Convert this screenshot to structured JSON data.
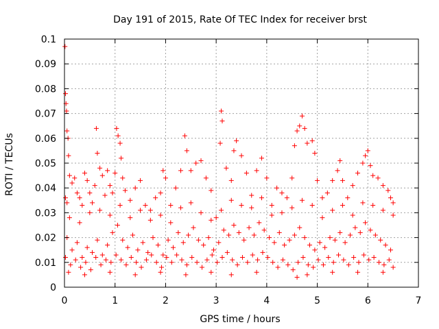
{
  "chart_data": {
    "type": "scatter",
    "title": "Day 191 of 2015, Rate Of TEC Index for receiver brst",
    "xlabel": "GPS time / hours",
    "ylabel": "ROTI / TECUs",
    "xlim": [
      0,
      7
    ],
    "ylim": [
      0,
      0.1
    ],
    "x_ticks": [
      "0",
      "1",
      "2",
      "3",
      "4",
      "5",
      "6",
      "7"
    ],
    "y_ticks": [
      "0",
      "0.01",
      "0.02",
      "0.03",
      "0.04",
      "0.05",
      "0.06",
      "0.07",
      "0.08",
      "0.09",
      "0.1"
    ],
    "grid": true,
    "marker": "+",
    "color": "#ff0000",
    "series": [
      {
        "points": [
          [
            0.01,
            0.097
          ],
          [
            0.02,
            0.078
          ],
          [
            0.03,
            0.074
          ],
          [
            0.04,
            0.071
          ],
          [
            0.05,
            0.063
          ],
          [
            0.07,
            0.06
          ],
          [
            0.02,
            0.036
          ],
          [
            0.05,
            0.034
          ],
          [
            0.08,
            0.053
          ],
          [
            0.1,
            0.045
          ],
          [
            0.15,
            0.042
          ],
          [
            0.2,
            0.044
          ],
          [
            0.25,
            0.038
          ],
          [
            0.3,
            0.036
          ],
          [
            0.35,
            0.033
          ],
          [
            0.4,
            0.046
          ],
          [
            0.45,
            0.043
          ],
          [
            0.5,
            0.038
          ],
          [
            0.55,
            0.034
          ],
          [
            0.6,
            0.041
          ],
          [
            0.63,
            0.064
          ],
          [
            0.65,
            0.054
          ],
          [
            0.7,
            0.048
          ],
          [
            0.75,
            0.045
          ],
          [
            0.8,
            0.037
          ],
          [
            0.85,
            0.047
          ],
          [
            0.9,
            0.041
          ],
          [
            0.95,
            0.038
          ],
          [
            1.0,
            0.046
          ],
          [
            1.03,
            0.064
          ],
          [
            1.06,
            0.061
          ],
          [
            1.1,
            0.058
          ],
          [
            1.12,
            0.052
          ],
          [
            1.15,
            0.044
          ],
          [
            1.2,
            0.039
          ],
          [
            1.3,
            0.035
          ],
          [
            1.4,
            0.04
          ],
          [
            1.5,
            0.043
          ],
          [
            1.6,
            0.033
          ],
          [
            1.7,
            0.031
          ],
          [
            1.8,
            0.036
          ],
          [
            1.9,
            0.038
          ],
          [
            1.95,
            0.047
          ],
          [
            2.0,
            0.044
          ],
          [
            2.1,
            0.033
          ],
          [
            2.2,
            0.04
          ],
          [
            2.3,
            0.047
          ],
          [
            2.38,
            0.061
          ],
          [
            2.42,
            0.055
          ],
          [
            2.5,
            0.047
          ],
          [
            2.6,
            0.05
          ],
          [
            2.7,
            0.051
          ],
          [
            2.8,
            0.044
          ],
          [
            2.9,
            0.039
          ],
          [
            3.0,
            0.028
          ],
          [
            3.08,
            0.058
          ],
          [
            3.1,
            0.071
          ],
          [
            3.12,
            0.067
          ],
          [
            3.2,
            0.048
          ],
          [
            3.3,
            0.043
          ],
          [
            3.35,
            0.055
          ],
          [
            3.4,
            0.059
          ],
          [
            3.5,
            0.053
          ],
          [
            3.6,
            0.046
          ],
          [
            3.7,
            0.037
          ],
          [
            3.8,
            0.047
          ],
          [
            3.9,
            0.052
          ],
          [
            4.0,
            0.044
          ],
          [
            4.1,
            0.033
          ],
          [
            4.2,
            0.04
          ],
          [
            4.3,
            0.038
          ],
          [
            4.4,
            0.036
          ],
          [
            4.5,
            0.044
          ],
          [
            4.55,
            0.057
          ],
          [
            4.6,
            0.063
          ],
          [
            4.65,
            0.065
          ],
          [
            4.7,
            0.069
          ],
          [
            4.75,
            0.064
          ],
          [
            4.8,
            0.058
          ],
          [
            4.9,
            0.059
          ],
          [
            4.95,
            0.054
          ],
          [
            5.0,
            0.043
          ],
          [
            5.1,
            0.036
          ],
          [
            5.2,
            0.038
          ],
          [
            5.3,
            0.043
          ],
          [
            5.4,
            0.047
          ],
          [
            5.45,
            0.051
          ],
          [
            5.5,
            0.043
          ],
          [
            5.6,
            0.036
          ],
          [
            5.7,
            0.041
          ],
          [
            5.8,
            0.046
          ],
          [
            5.9,
            0.05
          ],
          [
            5.95,
            0.053
          ],
          [
            6.0,
            0.055
          ],
          [
            6.05,
            0.049
          ],
          [
            6.1,
            0.045
          ],
          [
            6.2,
            0.044
          ],
          [
            6.3,
            0.041
          ],
          [
            6.4,
            0.039
          ],
          [
            6.45,
            0.036
          ],
          [
            6.5,
            0.034
          ],
          [
            0.1,
            0.028
          ],
          [
            0.3,
            0.026
          ],
          [
            0.5,
            0.03
          ],
          [
            0.7,
            0.031
          ],
          [
            0.9,
            0.029
          ],
          [
            1.1,
            0.033
          ],
          [
            1.3,
            0.028
          ],
          [
            1.5,
            0.031
          ],
          [
            1.7,
            0.027
          ],
          [
            1.9,
            0.029
          ],
          [
            2.1,
            0.026
          ],
          [
            2.3,
            0.032
          ],
          [
            2.5,
            0.034
          ],
          [
            2.7,
            0.03
          ],
          [
            2.9,
            0.027
          ],
          [
            3.1,
            0.031
          ],
          [
            3.3,
            0.035
          ],
          [
            3.5,
            0.033
          ],
          [
            3.7,
            0.032
          ],
          [
            3.9,
            0.036
          ],
          [
            4.1,
            0.029
          ],
          [
            4.3,
            0.03
          ],
          [
            4.5,
            0.032
          ],
          [
            4.7,
            0.035
          ],
          [
            4.9,
            0.033
          ],
          [
            5.1,
            0.028
          ],
          [
            5.3,
            0.031
          ],
          [
            5.5,
            0.033
          ],
          [
            5.7,
            0.029
          ],
          [
            5.9,
            0.034
          ],
          [
            6.1,
            0.033
          ],
          [
            6.3,
            0.031
          ],
          [
            6.5,
            0.029
          ],
          [
            0.05,
            0.02
          ],
          [
            0.15,
            0.015
          ],
          [
            0.25,
            0.018
          ],
          [
            0.35,
            0.012
          ],
          [
            0.45,
            0.016
          ],
          [
            0.55,
            0.014
          ],
          [
            0.65,
            0.019
          ],
          [
            0.75,
            0.013
          ],
          [
            0.85,
            0.017
          ],
          [
            0.95,
            0.022
          ],
          [
            1.05,
            0.025
          ],
          [
            1.15,
            0.019
          ],
          [
            1.25,
            0.016
          ],
          [
            1.35,
            0.021
          ],
          [
            1.45,
            0.015
          ],
          [
            1.55,
            0.018
          ],
          [
            1.65,
            0.014
          ],
          [
            1.75,
            0.02
          ],
          [
            1.85,
            0.017
          ],
          [
            1.95,
            0.013
          ],
          [
            2.05,
            0.019
          ],
          [
            2.15,
            0.016
          ],
          [
            2.25,
            0.022
          ],
          [
            2.35,
            0.018
          ],
          [
            2.45,
            0.021
          ],
          [
            2.55,
            0.024
          ],
          [
            2.65,
            0.019
          ],
          [
            2.75,
            0.017
          ],
          [
            2.85,
            0.02
          ],
          [
            2.95,
            0.015
          ],
          [
            3.05,
            0.018
          ],
          [
            3.15,
            0.023
          ],
          [
            3.25,
            0.021
          ],
          [
            3.35,
            0.025
          ],
          [
            3.45,
            0.022
          ],
          [
            3.55,
            0.019
          ],
          [
            3.65,
            0.024
          ],
          [
            3.75,
            0.021
          ],
          [
            3.85,
            0.026
          ],
          [
            3.95,
            0.023
          ],
          [
            4.05,
            0.02
          ],
          [
            4.15,
            0.018
          ],
          [
            4.25,
            0.022
          ],
          [
            4.35,
            0.017
          ],
          [
            4.45,
            0.019
          ],
          [
            4.55,
            0.021
          ],
          [
            4.65,
            0.024
          ],
          [
            4.75,
            0.02
          ],
          [
            4.85,
            0.017
          ],
          [
            4.95,
            0.015
          ],
          [
            5.05,
            0.018
          ],
          [
            5.15,
            0.016
          ],
          [
            5.25,
            0.02
          ],
          [
            5.35,
            0.019
          ],
          [
            5.45,
            0.022
          ],
          [
            5.55,
            0.018
          ],
          [
            5.65,
            0.021
          ],
          [
            5.75,
            0.024
          ],
          [
            5.85,
            0.022
          ],
          [
            5.95,
            0.026
          ],
          [
            6.05,
            0.023
          ],
          [
            6.15,
            0.021
          ],
          [
            6.25,
            0.019
          ],
          [
            6.35,
            0.017
          ],
          [
            6.45,
            0.015
          ],
          [
            0.02,
            0.012
          ],
          [
            0.12,
            0.009
          ],
          [
            0.22,
            0.011
          ],
          [
            0.32,
            0.008
          ],
          [
            0.42,
            0.01
          ],
          [
            0.52,
            0.007
          ],
          [
            0.62,
            0.012
          ],
          [
            0.72,
            0.009
          ],
          [
            0.82,
            0.011
          ],
          [
            0.92,
            0.01
          ],
          [
            1.02,
            0.013
          ],
          [
            1.12,
            0.011
          ],
          [
            1.22,
            0.009
          ],
          [
            1.32,
            0.012
          ],
          [
            1.42,
            0.01
          ],
          [
            1.52,
            0.008
          ],
          [
            1.62,
            0.011
          ],
          [
            1.72,
            0.013
          ],
          [
            1.82,
            0.01
          ],
          [
            1.92,
            0.008
          ],
          [
            2.02,
            0.012
          ],
          [
            2.12,
            0.01
          ],
          [
            2.22,
            0.013
          ],
          [
            2.32,
            0.011
          ],
          [
            2.42,
            0.009
          ],
          [
            2.52,
            0.012
          ],
          [
            2.62,
            0.01
          ],
          [
            2.72,
            0.008
          ],
          [
            2.82,
            0.011
          ],
          [
            2.92,
            0.013
          ],
          [
            3.02,
            0.01
          ],
          [
            3.12,
            0.012
          ],
          [
            3.22,
            0.014
          ],
          [
            3.32,
            0.011
          ],
          [
            3.42,
            0.009
          ],
          [
            3.52,
            0.012
          ],
          [
            3.62,
            0.01
          ],
          [
            3.72,
            0.013
          ],
          [
            3.82,
            0.011
          ],
          [
            3.92,
            0.014
          ],
          [
            4.02,
            0.012
          ],
          [
            4.12,
            0.01
          ],
          [
            4.22,
            0.008
          ],
          [
            4.32,
            0.011
          ],
          [
            4.42,
            0.009
          ],
          [
            4.52,
            0.007
          ],
          [
            4.62,
            0.01
          ],
          [
            4.72,
            0.012
          ],
          [
            4.82,
            0.009
          ],
          [
            4.92,
            0.008
          ],
          [
            5.02,
            0.011
          ],
          [
            5.12,
            0.009
          ],
          [
            5.22,
            0.012
          ],
          [
            5.32,
            0.01
          ],
          [
            5.42,
            0.013
          ],
          [
            5.52,
            0.011
          ],
          [
            5.62,
            0.009
          ],
          [
            5.72,
            0.012
          ],
          [
            5.82,
            0.01
          ],
          [
            5.92,
            0.013
          ],
          [
            6.02,
            0.011
          ],
          [
            6.12,
            0.012
          ],
          [
            6.22,
            0.01
          ],
          [
            6.32,
            0.009
          ],
          [
            6.42,
            0.011
          ],
          [
            6.5,
            0.008
          ],
          [
            0.08,
            0.006
          ],
          [
            0.4,
            0.005
          ],
          [
            0.9,
            0.006
          ],
          [
            1.4,
            0.005
          ],
          [
            1.9,
            0.006
          ],
          [
            2.4,
            0.005
          ],
          [
            2.9,
            0.006
          ],
          [
            3.3,
            0.005
          ],
          [
            3.8,
            0.006
          ],
          [
            4.6,
            0.004
          ],
          [
            4.8,
            0.005
          ],
          [
            5.3,
            0.006
          ],
          [
            5.8,
            0.006
          ],
          [
            6.3,
            0.006
          ]
        ]
      }
    ]
  }
}
